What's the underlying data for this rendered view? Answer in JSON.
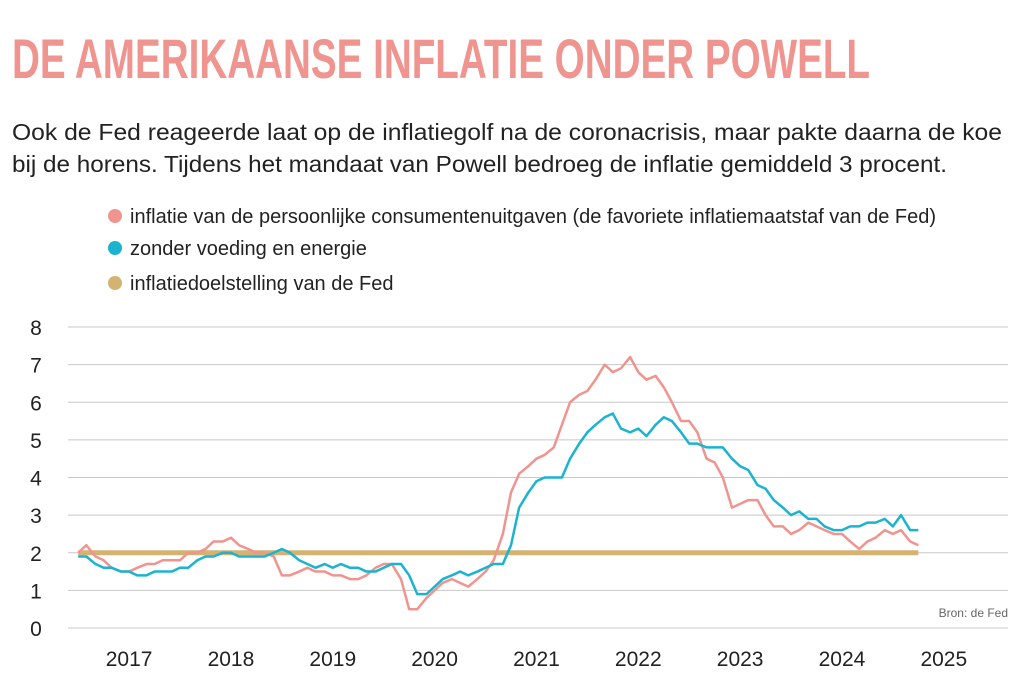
{
  "chart_data": {
    "type": "line",
    "title": "DE AMERIKAANSE INFLATIE ONDER POWELL",
    "subtitle": [
      "Ook de Fed reageerde laat op de inflatiegolf na de coronacrisis, maar pakte daarna de koe",
      "bij de horens. Tijdens het mandaat van Powell bedroeg de inflatie gemiddeld 3 procent."
    ],
    "source": "Bron: de Fed",
    "x": [
      2017,
      2017.08,
      2017.17,
      2017.25,
      2017.33,
      2017.42,
      2017.5,
      2017.58,
      2017.67,
      2017.75,
      2017.83,
      2017.92,
      2018,
      2018.08,
      2018.17,
      2018.25,
      2018.33,
      2018.42,
      2018.5,
      2018.58,
      2018.67,
      2018.75,
      2018.83,
      2018.92,
      2019,
      2019.08,
      2019.17,
      2019.25,
      2019.33,
      2019.42,
      2019.5,
      2019.58,
      2019.67,
      2019.75,
      2019.83,
      2019.92,
      2020,
      2020.08,
      2020.17,
      2020.25,
      2020.33,
      2020.42,
      2020.5,
      2020.58,
      2020.67,
      2020.75,
      2020.83,
      2020.92,
      2021,
      2021.08,
      2021.17,
      2021.25,
      2021.33,
      2021.42,
      2021.5,
      2021.58,
      2021.67,
      2021.75,
      2021.83,
      2021.92,
      2022,
      2022.08,
      2022.17,
      2022.25,
      2022.33,
      2022.42,
      2022.5,
      2022.58,
      2022.67,
      2022.75,
      2022.83,
      2022.92,
      2023,
      2023.08,
      2023.17,
      2023.25,
      2023.33,
      2023.42,
      2023.5,
      2023.58,
      2023.67,
      2023.75,
      2023.83,
      2023.92,
      2024,
      2024.08,
      2024.17,
      2024.25,
      2024.33,
      2024.42,
      2024.5,
      2024.58,
      2024.67,
      2024.75,
      2024.83,
      2024.92,
      2025,
      2025.08,
      2025.17,
      2025.25
    ],
    "series": [
      {
        "name": "inflatie van de persoonlijke consumentenuitgaven (de favoriete inflatiemaatstaf van de Fed)",
        "color": "#f0948f",
        "values": [
          2.0,
          2.2,
          1.9,
          1.8,
          1.6,
          1.5,
          1.5,
          1.6,
          1.7,
          1.7,
          1.8,
          1.8,
          1.8,
          2.0,
          2.0,
          2.1,
          2.3,
          2.3,
          2.4,
          2.2,
          2.1,
          2.0,
          2.0,
          1.9,
          1.4,
          1.4,
          1.5,
          1.6,
          1.5,
          1.5,
          1.4,
          1.4,
          1.3,
          1.3,
          1.4,
          1.6,
          1.7,
          1.7,
          1.3,
          0.5,
          0.5,
          0.8,
          1.0,
          1.2,
          1.3,
          1.2,
          1.1,
          1.3,
          1.5,
          1.8,
          2.5,
          3.6,
          4.1,
          4.3,
          4.5,
          4.6,
          4.8,
          5.4,
          6.0,
          6.2,
          6.3,
          6.6,
          7.0,
          6.8,
          6.9,
          7.2,
          6.8,
          6.6,
          6.7,
          6.4,
          6.0,
          5.5,
          5.5,
          5.2,
          4.5,
          4.4,
          4.0,
          3.2,
          3.3,
          3.4,
          3.4,
          3.0,
          2.7,
          2.7,
          2.5,
          2.6,
          2.8,
          2.7,
          2.6,
          2.5,
          2.5,
          2.3,
          2.1,
          2.3,
          2.4,
          2.6,
          2.5,
          2.6,
          2.3,
          2.2
        ]
      },
      {
        "name": "zonder voeding en energie",
        "color": "#1bb3cf",
        "values": [
          1.9,
          1.9,
          1.7,
          1.6,
          1.6,
          1.5,
          1.5,
          1.4,
          1.4,
          1.5,
          1.5,
          1.5,
          1.6,
          1.6,
          1.8,
          1.9,
          1.9,
          2.0,
          2.0,
          1.9,
          1.9,
          1.9,
          1.9,
          2.0,
          2.1,
          2.0,
          1.8,
          1.7,
          1.6,
          1.7,
          1.6,
          1.7,
          1.6,
          1.6,
          1.5,
          1.5,
          1.6,
          1.7,
          1.7,
          1.4,
          0.9,
          0.9,
          1.1,
          1.3,
          1.4,
          1.5,
          1.4,
          1.5,
          1.6,
          1.7,
          1.7,
          2.2,
          3.2,
          3.6,
          3.9,
          4.0,
          4.0,
          4.0,
          4.5,
          4.9,
          5.2,
          5.4,
          5.6,
          5.7,
          5.3,
          5.2,
          5.3,
          5.1,
          5.4,
          5.6,
          5.5,
          5.2,
          4.9,
          4.9,
          4.8,
          4.8,
          4.8,
          4.5,
          4.3,
          4.2,
          3.8,
          3.7,
          3.4,
          3.2,
          3.0,
          3.1,
          2.9,
          2.9,
          2.7,
          2.6,
          2.6,
          2.7,
          2.7,
          2.8,
          2.8,
          2.9,
          2.7,
          3.0,
          2.6,
          2.6
        ]
      }
    ],
    "target": {
      "name": "inflatiedoelstelling van de Fed",
      "color": "#d4b272",
      "value": 2
    },
    "xlim": [
      2016.9,
      2026.15
    ],
    "xticks": [
      {
        "value": 2017.5,
        "label": "2017"
      },
      {
        "value": 2018.5,
        "label": "2018"
      },
      {
        "value": 2019.5,
        "label": "2019"
      },
      {
        "value": 2020.5,
        "label": "2020"
      },
      {
        "value": 2021.5,
        "label": "2021"
      },
      {
        "value": 2022.5,
        "label": "2022"
      },
      {
        "value": 2023.5,
        "label": "2023"
      },
      {
        "value": 2024.5,
        "label": "2024"
      },
      {
        "value": 2025.5,
        "label": "2025"
      }
    ],
    "ylim": [
      0,
      8
    ],
    "yticks": [
      0,
      1,
      2,
      3,
      4,
      5,
      6,
      7,
      8
    ],
    "grid": true
  }
}
